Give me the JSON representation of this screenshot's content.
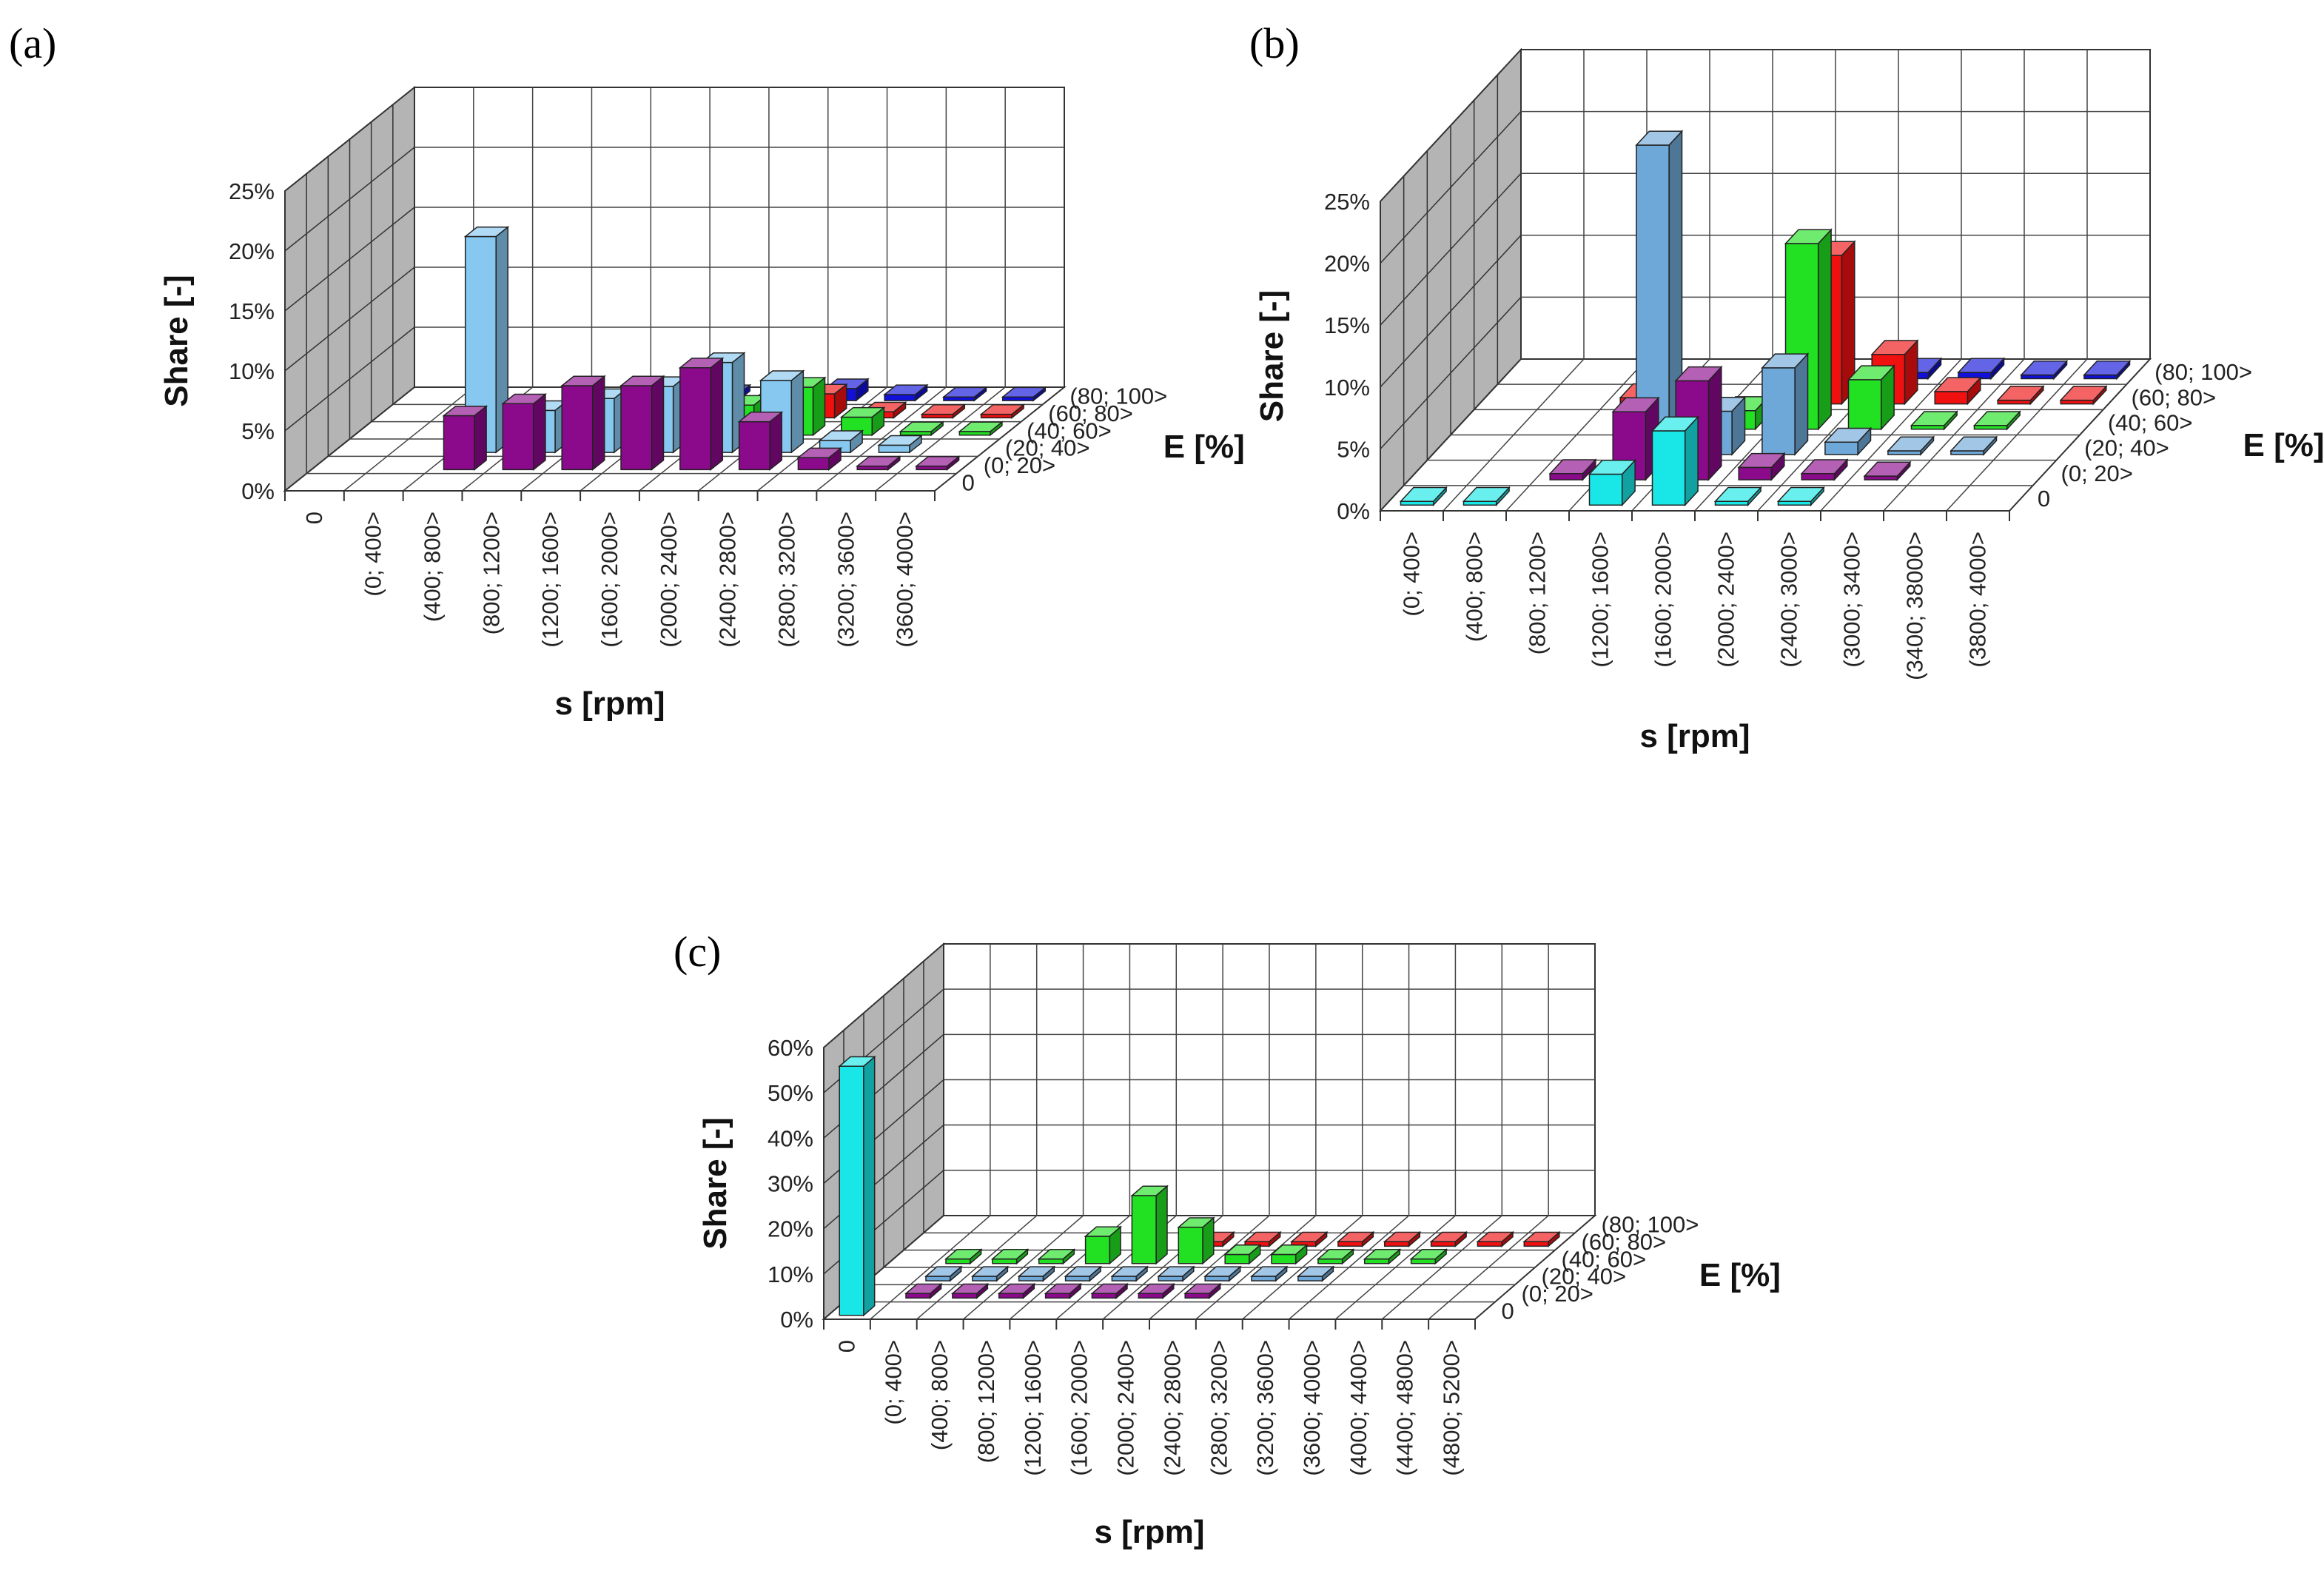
{
  "colors": {
    "cyan": "#19e6e6",
    "purple": "#8b0a8b",
    "lightblue": "#87c8f0",
    "steelblue": "#6ea8d8",
    "green": "#22e022",
    "red": "#f01010",
    "blue": "#1010d8"
  },
  "chart_data": [
    {
      "id": "a",
      "type": "bar3d",
      "panel_label": "(a)",
      "ylabel": "Share [-]",
      "xlabel": "s [rpm]",
      "zlabel": "E [%]",
      "ylim": [
        0,
        25
      ],
      "yticks": [
        "0%",
        "5%",
        "10%",
        "15%",
        "20%",
        "25%"
      ],
      "categories": [
        "0",
        "(0; 400>",
        "(400; 800>",
        "(800; 1200>",
        "(1200; 1600>",
        "(1600; 2000>",
        "(2000; 2400>",
        "(2400; 2800>",
        "(2800; 3200>",
        "(3200; 3600>",
        "(3600; 4000>"
      ],
      "rows": [
        "0",
        "(0; 20>",
        "(20; 40>",
        "(40; 60>",
        "(60; 80>",
        "(80; 100>"
      ],
      "series": [
        {
          "name": "0",
          "color": "cyan",
          "values": [
            0,
            0,
            0,
            0,
            0,
            0,
            0,
            0,
            0,
            0,
            0
          ]
        },
        {
          "name": "(0; 20>",
          "color": "purple",
          "values": [
            0,
            0,
            4.5,
            5.5,
            7,
            7,
            8.5,
            4,
            1,
            0.3,
            0.3
          ]
        },
        {
          "name": "(20; 40>",
          "color": "lightblue",
          "values": [
            0,
            0,
            18,
            3.5,
            4.5,
            5.5,
            7.5,
            6,
            1,
            0.6,
            0
          ]
        },
        {
          "name": "(40; 60>",
          "color": "green",
          "values": [
            0,
            0,
            0,
            1,
            2,
            2.5,
            2.5,
            4,
            1.5,
            0.3,
            0.3
          ]
        },
        {
          "name": "(60; 80>",
          "color": "red",
          "values": [
            0,
            0,
            0,
            1,
            1,
            1,
            1,
            2,
            0.5,
            0.3,
            0.3
          ]
        },
        {
          "name": "(80; 100>",
          "color": "blue",
          "values": [
            0,
            0,
            0,
            0,
            0,
            0.5,
            0.5,
            1,
            0.5,
            0.3,
            0.3
          ]
        }
      ]
    },
    {
      "id": "b",
      "type": "bar3d",
      "panel_label": "(b)",
      "ylabel": "Share [-]",
      "xlabel": "s [rpm]",
      "zlabel": "E [%]",
      "ylim": [
        0,
        25
      ],
      "yticks": [
        "0%",
        "5%",
        "10%",
        "15%",
        "20%",
        "25%"
      ],
      "categories": [
        "(0; 400>",
        "(400; 800>",
        "(800; 1200>",
        "(1200; 1600>",
        "(1600; 2000>",
        "(2000; 2400>",
        "(2400; 3000>",
        "(3000; 3400>",
        "(3400; 38000>",
        "(3800; 4000>"
      ],
      "rows": [
        "0",
        "(0; 20>",
        "(20; 40>",
        "(40; 60>",
        "(60; 80>",
        "(80; 100>"
      ],
      "series": [
        {
          "name": "0",
          "color": "cyan",
          "values": [
            0.3,
            0.3,
            0,
            2.5,
            6,
            0.3,
            0.3,
            0,
            0,
            0
          ]
        },
        {
          "name": "(0; 20>",
          "color": "purple",
          "values": [
            0,
            0,
            0.5,
            5.5,
            8,
            1,
            0.5,
            0.3,
            0,
            0
          ]
        },
        {
          "name": "(20; 40>",
          "color": "steelblue",
          "values": [
            0,
            0,
            0,
            25,
            3.5,
            7,
            1,
            0.3,
            0.3,
            0
          ]
        },
        {
          "name": "(40; 60>",
          "color": "green",
          "values": [
            0,
            0,
            0,
            1,
            1.5,
            15,
            4,
            0.3,
            0.3,
            0
          ]
        },
        {
          "name": "(60; 80>",
          "color": "red",
          "values": [
            0,
            0,
            0.5,
            0,
            0,
            12,
            4,
            1,
            0.3,
            0.3
          ]
        },
        {
          "name": "(80; 100>",
          "color": "blue",
          "values": [
            0,
            0,
            0,
            0,
            0,
            0,
            0.5,
            0.5,
            0.3,
            0.3
          ]
        }
      ]
    },
    {
      "id": "c",
      "type": "bar3d",
      "panel_label": "(c)",
      "ylabel": "Share [-]",
      "xlabel": "s [rpm]",
      "zlabel": "E [%]",
      "ylim": [
        0,
        60
      ],
      "yticks": [
        "0%",
        "10%",
        "20%",
        "30%",
        "40%",
        "50%",
        "60%"
      ],
      "categories": [
        "0",
        "(0; 400>",
        "(400; 800>",
        "(800; 1200>",
        "(1200; 1600>",
        "(1600; 2000>",
        "(2000; 2400>",
        "(2400; 2800>",
        "(2800; 3200>",
        "(3200; 3600>",
        "(3600; 4000>",
        "(4000; 4400>",
        "(4400; 4800>",
        "(4800; 5200>"
      ],
      "rows": [
        "0",
        "(0; 20>",
        "(20; 40>",
        "(40; 60>",
        "(60; 80>",
        "(80; 100>"
      ],
      "series": [
        {
          "name": "0",
          "color": "cyan",
          "values": [
            55,
            0,
            0,
            0,
            0,
            0,
            0,
            0,
            0,
            0,
            0,
            0,
            0,
            0
          ]
        },
        {
          "name": "(0; 20>",
          "color": "purple",
          "values": [
            0,
            1,
            1,
            1,
            1,
            1,
            1,
            1,
            0,
            0,
            0,
            0,
            0,
            0
          ]
        },
        {
          "name": "(20; 40>",
          "color": "steelblue",
          "values": [
            0,
            1,
            1,
            1,
            1,
            1,
            1,
            1,
            1,
            1,
            0,
            0,
            0,
            0
          ]
        },
        {
          "name": "(40; 60>",
          "color": "green",
          "values": [
            0,
            1,
            1,
            1,
            6,
            15,
            8,
            2,
            2,
            1,
            1,
            1,
            0,
            0
          ]
        },
        {
          "name": "(60; 80>",
          "color": "red",
          "values": [
            0,
            0,
            0,
            0,
            0,
            0,
            1,
            1,
            1,
            1,
            1,
            1,
            1,
            1
          ]
        },
        {
          "name": "(80; 100>",
          "color": "blue",
          "values": [
            0,
            0,
            0,
            0,
            0,
            0,
            0,
            0,
            0,
            0,
            0,
            0,
            0,
            0
          ]
        }
      ]
    }
  ]
}
